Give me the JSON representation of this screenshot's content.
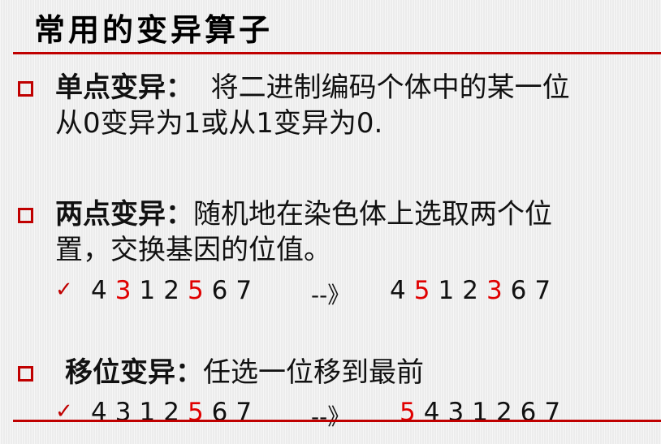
{
  "title": "常用的变异算子",
  "items": [
    {
      "lead": "单点变异：",
      "line1": "将二进制编码个体中的某一位",
      "line2": "从0变异为1或从1变异为0."
    },
    {
      "lead": "两点变异：",
      "line1": "随机地在染色体上选取两个位",
      "line2": "置，交换基因的位值。",
      "example": {
        "check": "✓",
        "before": [
          {
            "t": "4",
            "hl": false
          },
          {
            "t": "3",
            "hl": true
          },
          {
            "t": "1",
            "hl": false
          },
          {
            "t": "2",
            "hl": false
          },
          {
            "t": "5",
            "hl": true
          },
          {
            "t": "6",
            "hl": false
          },
          {
            "t": "7",
            "hl": false
          }
        ],
        "arrow": "--》",
        "after": [
          {
            "t": "4",
            "hl": false
          },
          {
            "t": "5",
            "hl": true
          },
          {
            "t": "1",
            "hl": false
          },
          {
            "t": "2",
            "hl": false
          },
          {
            "t": "3",
            "hl": true
          },
          {
            "t": "6",
            "hl": false
          },
          {
            "t": "7",
            "hl": false
          }
        ]
      }
    },
    {
      "lead": "移位变异：",
      "line1": "任选一位移到最前",
      "example": {
        "check": "✓",
        "before": [
          {
            "t": "4",
            "hl": false
          },
          {
            "t": "3",
            "hl": false
          },
          {
            "t": "1",
            "hl": false
          },
          {
            "t": "2",
            "hl": false
          },
          {
            "t": "5",
            "hl": true
          },
          {
            "t": "6",
            "hl": false
          },
          {
            "t": "7",
            "hl": false
          }
        ],
        "arrow": "--》",
        "after": [
          {
            "t": "5",
            "hl": true
          },
          {
            "t": "4",
            "hl": false
          },
          {
            "t": "3",
            "hl": false
          },
          {
            "t": "1",
            "hl": false
          },
          {
            "t": "2",
            "hl": false
          },
          {
            "t": "6",
            "hl": false
          },
          {
            "t": "7",
            "hl": false
          }
        ]
      }
    }
  ],
  "colors": {
    "accent": "#c00000",
    "highlight": "#e00000"
  }
}
